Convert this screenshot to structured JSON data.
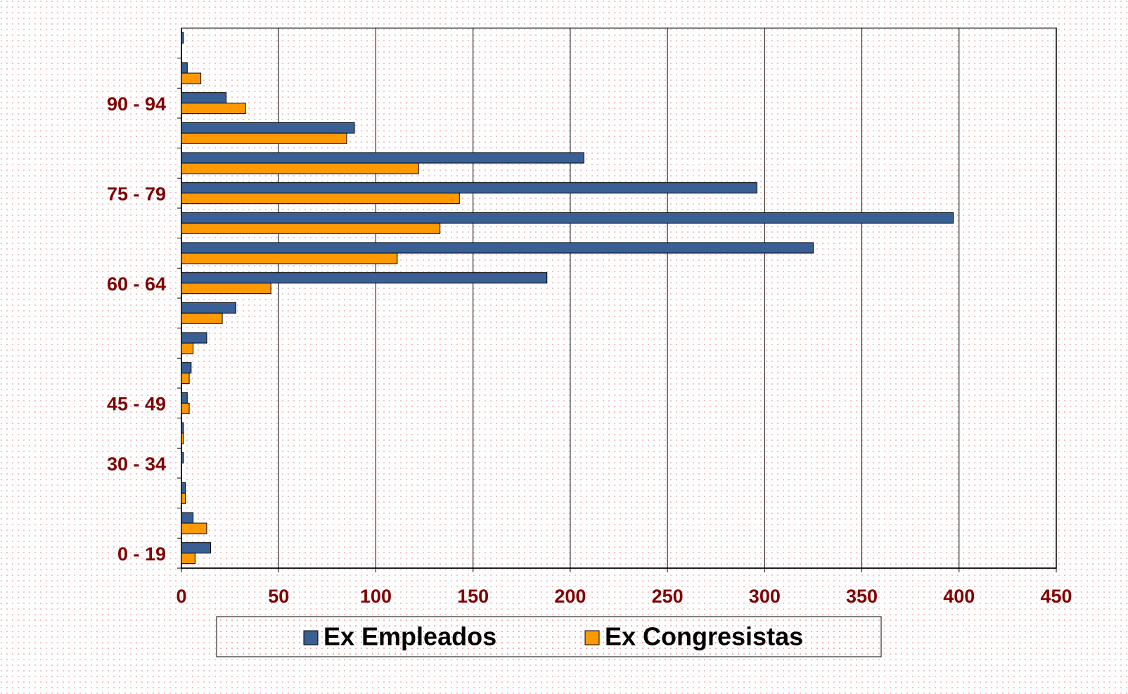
{
  "chart_data": {
    "type": "barh",
    "categories": [
      "0 - 19",
      null,
      null,
      "30 - 34",
      null,
      "45 - 49",
      null,
      null,
      null,
      "60 - 64",
      null,
      null,
      "75 - 79",
      null,
      null,
      "90 - 94",
      null,
      null
    ],
    "series": [
      {
        "name": "Ex Empleados",
        "color": "#3a5f94",
        "values": [
          15,
          6,
          2,
          1,
          1,
          3,
          5,
          13,
          28,
          188,
          325,
          397,
          296,
          207,
          89,
          23,
          3,
          1
        ]
      },
      {
        "name": "Ex Congresistas",
        "color": "#ff9900",
        "values": [
          7,
          13,
          2,
          0,
          1,
          4,
          4,
          6,
          21,
          46,
          111,
          133,
          143,
          122,
          85,
          33,
          10,
          0
        ]
      }
    ],
    "xlim": [
      0,
      450
    ],
    "xticks": [
      0,
      50,
      100,
      150,
      200,
      250,
      300,
      350,
      400,
      450
    ],
    "grid": true,
    "legend": "bottom"
  }
}
